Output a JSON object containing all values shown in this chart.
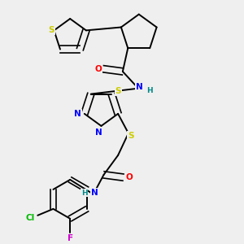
{
  "background_color": "#efefef",
  "bond_color": "#000000",
  "atom_colors": {
    "S": "#cccc00",
    "N": "#0000ff",
    "O": "#ff0000",
    "Cl": "#00bb00",
    "F": "#cc00cc",
    "H": "#008888"
  },
  "figsize": [
    3.0,
    3.0
  ],
  "dpi": 100
}
